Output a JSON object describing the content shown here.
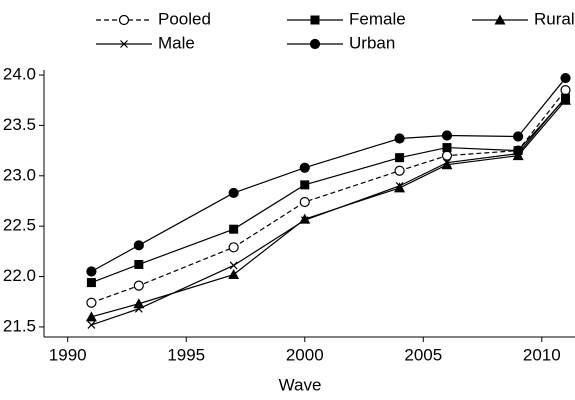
{
  "chart_data": {
    "type": "line",
    "x_label": "Wave",
    "x": [
      1991,
      1993,
      1997,
      2000,
      2004,
      2006,
      2009,
      2011
    ],
    "xlim": [
      1989,
      2011.4
    ],
    "xticks": [
      1990,
      1995,
      2000,
      2005,
      2010
    ],
    "ylim": [
      21.4,
      24.05
    ],
    "yticks": [
      {
        "value": 21.5,
        "label": "21.5"
      },
      {
        "value": 22,
        "label": "22.0"
      },
      {
        "value": 22.5,
        "label": "22.5"
      },
      {
        "value": 23,
        "label": "23.0"
      },
      {
        "value": 23.5,
        "label": "23.5"
      },
      {
        "value": 24,
        "label": "24.0"
      }
    ],
    "grid": false,
    "series": [
      {
        "name": "Pooled",
        "color": "#000000",
        "marker": "circle-open",
        "dashed": true,
        "values": [
          21.74,
          21.91,
          22.29,
          22.74,
          23.05,
          23.2,
          23.25,
          23.85
        ]
      },
      {
        "name": "Female",
        "color": "#000000",
        "marker": "square",
        "dashed": false,
        "values": [
          21.94,
          22.12,
          22.47,
          22.91,
          23.18,
          23.28,
          23.25,
          23.77
        ]
      },
      {
        "name": "Rural",
        "color": "#000000",
        "marker": "triangle",
        "dashed": false,
        "values": [
          21.6,
          21.73,
          22.02,
          22.57,
          22.88,
          23.11,
          23.2,
          23.75
        ]
      },
      {
        "name": "Male",
        "color": "#000000",
        "marker": "cross",
        "dashed": false,
        "values": [
          21.52,
          21.68,
          22.11,
          22.56,
          22.9,
          23.13,
          23.22,
          23.78
        ]
      },
      {
        "name": "Urban",
        "color": "#000000",
        "marker": "circle",
        "dashed": false,
        "values": [
          22.05,
          22.31,
          22.83,
          23.08,
          23.37,
          23.4,
          23.39,
          23.97
        ]
      }
    ]
  }
}
